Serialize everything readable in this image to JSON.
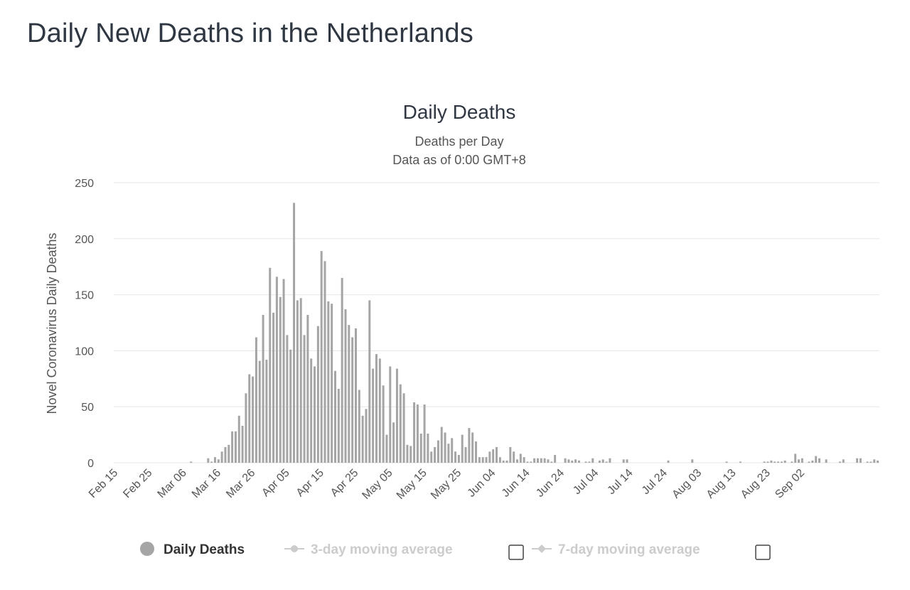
{
  "page": {
    "title": "Daily New Deaths in the Netherlands"
  },
  "chart_data": {
    "type": "bar",
    "title": "Daily Deaths",
    "subtitle": [
      "Deaths per Day",
      "Data as of 0:00 GMT+8"
    ],
    "ylabel": "Novel Coronavirus Daily Deaths",
    "xlabel": "",
    "ylim": [
      0,
      250
    ],
    "yticks": [
      0,
      50,
      100,
      150,
      200,
      250
    ],
    "grid": true,
    "start_date": "2020-02-15",
    "xtick_labels": [
      "Feb 15",
      "Feb 25",
      "Mar 06",
      "Mar 16",
      "Mar 26",
      "Apr 05",
      "Apr 15",
      "Apr 25",
      "May 05",
      "May 15",
      "May 25",
      "Jun 04",
      "Jun 14",
      "Jun 24",
      "Jul 04",
      "Jul 14",
      "Jul 24",
      "Aug 03",
      "Aug 13",
      "Aug 23",
      "Sep 02"
    ],
    "series": [
      {
        "name": "Daily Deaths",
        "color": "#a5a5a5",
        "values": [
          0,
          0,
          0,
          0,
          0,
          0,
          0,
          0,
          0,
          0,
          0,
          0,
          0,
          0,
          0,
          0,
          0,
          0,
          0,
          0,
          0,
          0,
          1,
          0,
          0,
          0,
          0,
          4,
          1,
          5,
          3,
          10,
          14,
          16,
          28,
          28,
          42,
          33,
          62,
          79,
          77,
          112,
          91,
          132,
          92,
          174,
          134,
          166,
          148,
          164,
          114,
          101,
          232,
          145,
          147,
          114,
          132,
          93,
          86,
          122,
          189,
          180,
          144,
          142,
          82,
          66,
          165,
          137,
          123,
          112,
          120,
          65,
          42,
          48,
          145,
          84,
          97,
          93,
          69,
          25,
          86,
          36,
          84,
          70,
          62,
          16,
          15,
          54,
          52,
          26,
          52,
          26,
          10,
          14,
          20,
          32,
          27,
          17,
          22,
          10,
          7,
          25,
          14,
          31,
          27,
          19,
          5,
          5,
          5,
          10,
          12,
          14,
          5,
          2,
          2,
          14,
          10,
          3,
          8,
          5,
          1,
          1,
          4,
          4,
          4,
          4,
          3,
          1,
          7,
          0,
          0,
          4,
          3,
          2,
          3,
          2,
          0,
          1,
          1,
          4,
          0,
          2,
          3,
          1,
          4,
          0,
          0,
          0,
          3,
          3,
          0,
          0,
          0,
          0,
          0,
          0,
          0,
          0,
          0,
          0,
          0,
          2,
          0,
          0,
          0,
          0,
          0,
          0,
          3,
          0,
          0,
          0,
          0,
          0,
          0,
          0,
          0,
          0,
          1,
          0,
          0,
          0,
          1,
          0,
          0,
          0,
          0,
          0,
          0,
          1,
          1,
          2,
          1,
          1,
          1,
          2,
          0,
          1,
          8,
          3,
          4,
          0,
          1,
          2,
          6,
          4,
          0,
          3,
          0,
          0,
          0,
          1,
          3,
          0,
          0,
          0,
          4,
          4,
          0,
          1,
          1,
          3,
          2
        ]
      }
    ],
    "legend": {
      "position": "bottom",
      "items": [
        {
          "name": "Daily Deaths",
          "active": true
        },
        {
          "name": "3-day moving average",
          "active": false,
          "checkbox": true
        },
        {
          "name": "7-day moving average",
          "active": false,
          "checkbox": true
        }
      ]
    }
  }
}
